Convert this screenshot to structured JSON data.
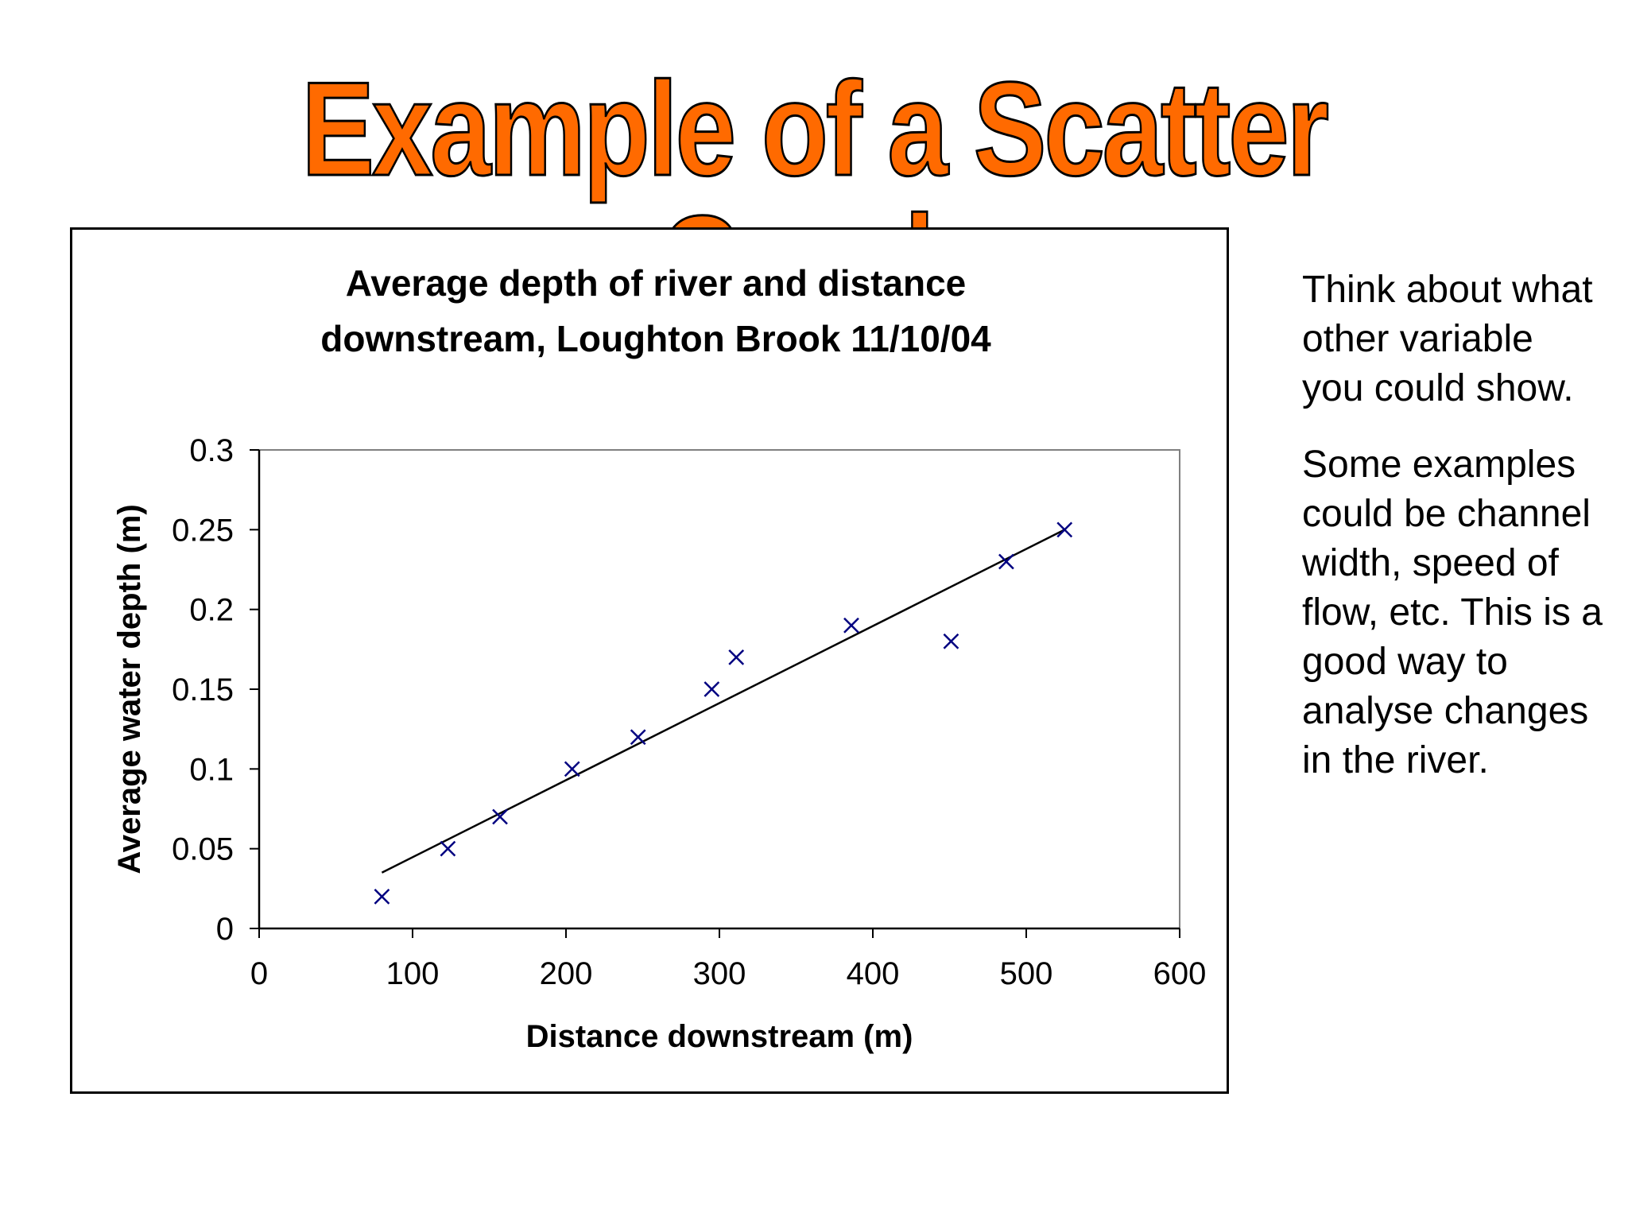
{
  "slide": {
    "title": "Example of a Scatter Graph",
    "title_color": "#ff6a00",
    "side_text": {
      "paragraph1": "Think about what other variable you could show.",
      "paragraph2": "Some examples could be channel width, speed of flow, etc. This is a good way to analyse changes in the river."
    }
  },
  "chart_data": {
    "type": "scatter",
    "title_line1": "Average depth of river and distance",
    "title_line2": "downstream, Loughton Brook 11/10/04",
    "xlabel": "Distance downstream (m)",
    "ylabel": "Average water depth (m)",
    "xlim": [
      0,
      600
    ],
    "ylim": [
      0,
      0.3
    ],
    "x_ticks": [
      0,
      100,
      200,
      300,
      400,
      500,
      600
    ],
    "x_tick_labels": [
      "0",
      "100",
      "200",
      "300",
      "400",
      "500",
      "600"
    ],
    "y_ticks": [
      0,
      0.05,
      0.1,
      0.15,
      0.2,
      0.25,
      0.3
    ],
    "y_tick_labels": [
      "0",
      "0.05",
      "0.1",
      "0.15",
      "0.2",
      "0.25",
      "0.3"
    ],
    "marker": "x",
    "marker_color": "#000080",
    "grid": false,
    "points": [
      {
        "x": 80,
        "y": 0.02
      },
      {
        "x": 123,
        "y": 0.05
      },
      {
        "x": 157,
        "y": 0.07
      },
      {
        "x": 204,
        "y": 0.1
      },
      {
        "x": 247,
        "y": 0.12
      },
      {
        "x": 295,
        "y": 0.15
      },
      {
        "x": 311,
        "y": 0.17
      },
      {
        "x": 386,
        "y": 0.19
      },
      {
        "x": 451,
        "y": 0.18
      },
      {
        "x": 487,
        "y": 0.23
      },
      {
        "x": 525,
        "y": 0.25
      }
    ],
    "trendline": {
      "x1": 80,
      "y1": 0.035,
      "x2": 525,
      "y2": 0.25
    }
  }
}
